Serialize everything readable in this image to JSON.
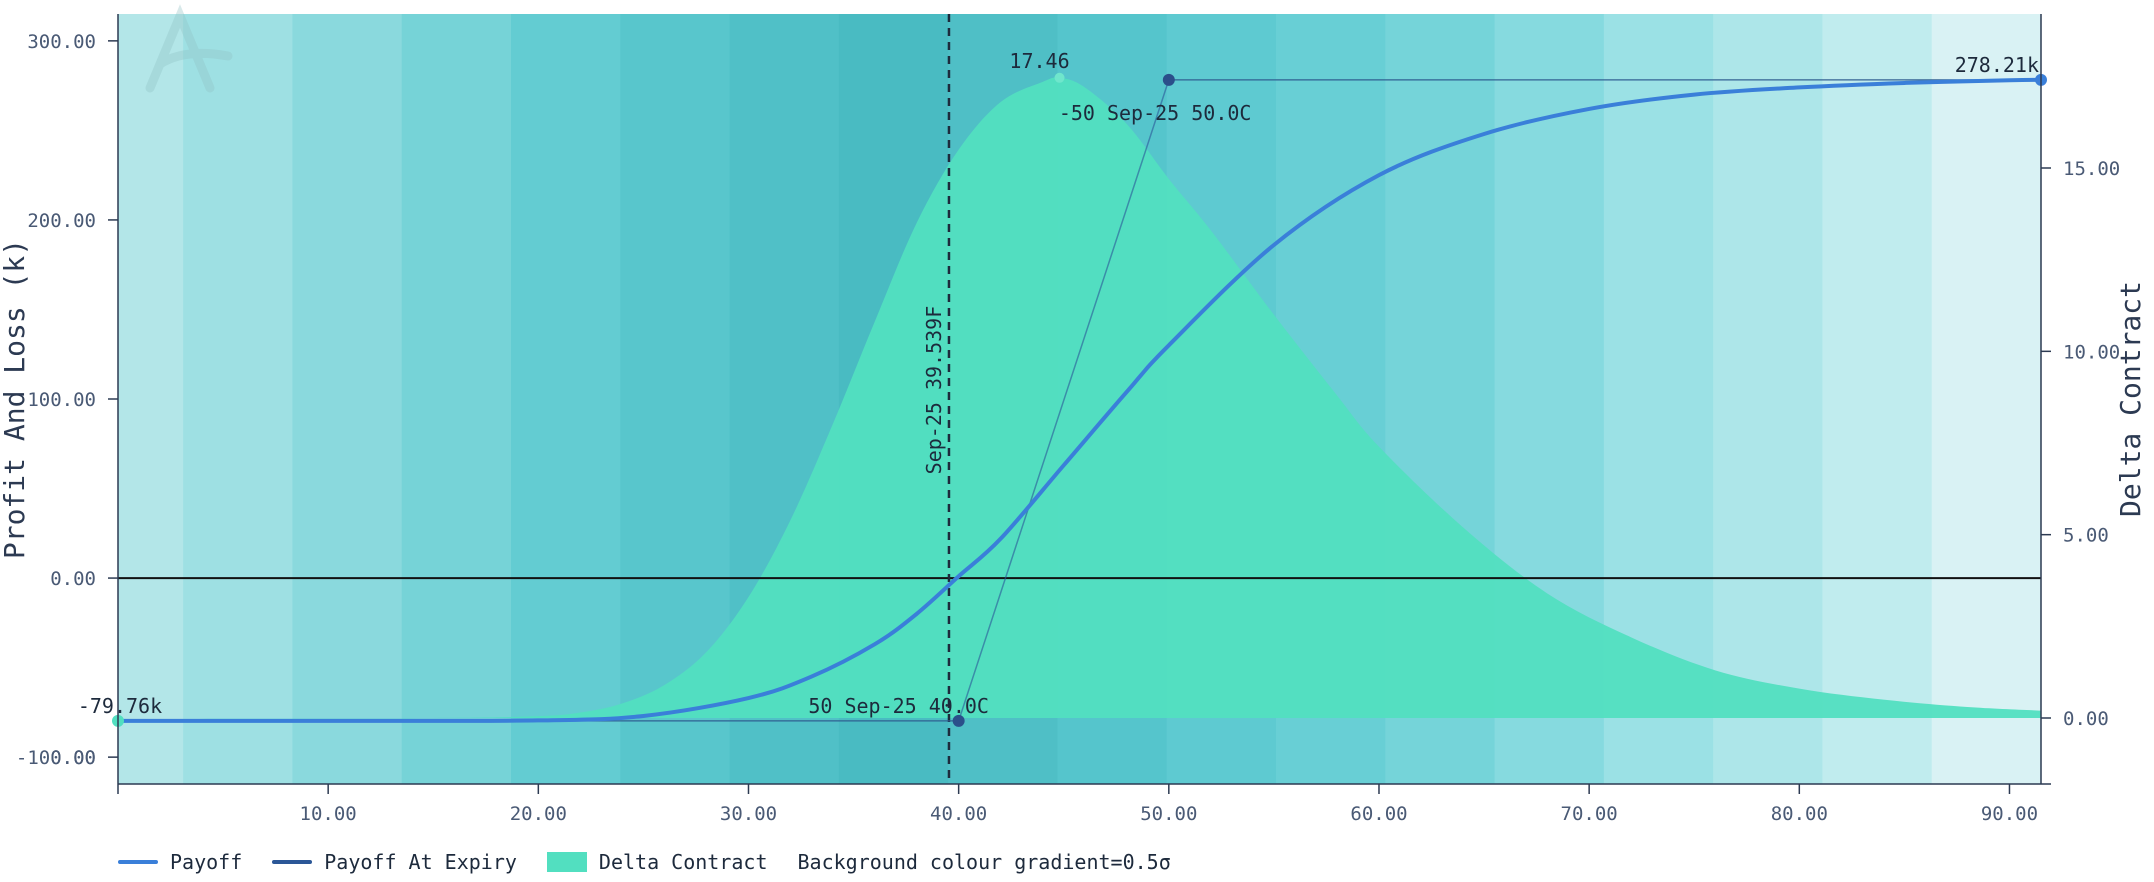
{
  "chart_data": {
    "type": "area",
    "left_axis": {
      "label": "Profit And Loss (k)",
      "range": [
        -115,
        315
      ],
      "ticks": [
        -100,
        0,
        100,
        200,
        300
      ],
      "tick_labels": [
        "-100.00",
        "0.00",
        "100.00",
        "200.00",
        "300.00"
      ]
    },
    "right_axis": {
      "label": "Delta Contract",
      "range": [
        -1.8,
        19.2
      ],
      "ticks": [
        0,
        5,
        10,
        15
      ],
      "tick_labels": [
        "0.00",
        "5.00",
        "10.00",
        "15.00"
      ]
    },
    "x_axis": {
      "label": "",
      "range": [
        0,
        91.5
      ],
      "ticks": [
        10,
        20,
        30,
        40,
        50,
        60,
        70,
        80,
        90
      ],
      "tick_labels": [
        "10.00",
        "20.00",
        "30.00",
        "40.00",
        "50.00",
        "60.00",
        "70.00",
        "80.00",
        "90.00"
      ]
    },
    "overlap_label": "0.00",
    "series": [
      {
        "name": "Payoff",
        "color": "#3a7fd9",
        "x": [
          0,
          10,
          20,
          25,
          30,
          33,
          36,
          38,
          40,
          42,
          45,
          48,
          50,
          55,
          60,
          65,
          70,
          75,
          80,
          85,
          90,
          91.5
        ],
        "y": [
          -79.76,
          -79.76,
          -79.5,
          -77,
          -67,
          -55,
          -37,
          -20,
          1,
          22,
          63,
          104,
          130,
          186,
          225,
          248,
          262,
          270,
          274,
          276.5,
          278,
          278.21
        ]
      },
      {
        "name": "Payoff At Expiry",
        "color": "#2b5797",
        "x": [
          0,
          40,
          50,
          91.5
        ],
        "y": [
          -79.76,
          -79.76,
          278.21,
          278.21
        ]
      },
      {
        "name": "Delta Contract",
        "color": "#52dfc0",
        "x": [
          0,
          15,
          20,
          22,
          24,
          26,
          28,
          30,
          32,
          34,
          36,
          38,
          40,
          42,
          44,
          44.8,
          46,
          48,
          50,
          52,
          55,
          58,
          60,
          64,
          68,
          72,
          76,
          80,
          84,
          88,
          91.5
        ],
        "y": [
          0,
          0,
          0.05,
          0.15,
          0.4,
          0.9,
          1.8,
          3.3,
          5.4,
          8.0,
          10.8,
          13.5,
          15.5,
          16.8,
          17.35,
          17.46,
          17.2,
          16.2,
          14.7,
          13.3,
          11.0,
          8.8,
          7.4,
          5.2,
          3.4,
          2.2,
          1.3,
          0.8,
          0.5,
          0.3,
          0.2
        ]
      }
    ],
    "background_bands": [
      {
        "x0": 0,
        "x1": 3.1,
        "color": "#b3e6e8"
      },
      {
        "x0": 3.1,
        "x1": 8.3,
        "color": "#9ee0e3"
      },
      {
        "x0": 8.3,
        "x1": 13.5,
        "color": "#8ad9dd"
      },
      {
        "x0": 13.5,
        "x1": 18.7,
        "color": "#76d3d7"
      },
      {
        "x0": 18.7,
        "x1": 23.9,
        "color": "#63ccd2"
      },
      {
        "x0": 23.9,
        "x1": 29.1,
        "color": "#58c6cc"
      },
      {
        "x0": 29.1,
        "x1": 34.3,
        "color": "#50c0c7"
      },
      {
        "x0": 34.3,
        "x1": 39.5,
        "color": "#49bbc2"
      },
      {
        "x0": 39.5,
        "x1": 44.7,
        "color": "#4fbfc6"
      },
      {
        "x0": 44.7,
        "x1": 49.9,
        "color": "#55c5cc"
      },
      {
        "x0": 49.9,
        "x1": 55.1,
        "color": "#5ecad1"
      },
      {
        "x0": 55.1,
        "x1": 60.3,
        "color": "#68cfd5"
      },
      {
        "x0": 60.3,
        "x1": 65.5,
        "color": "#75d4d9"
      },
      {
        "x0": 65.5,
        "x1": 70.7,
        "color": "#86dadf"
      },
      {
        "x0": 70.7,
        "x1": 75.9,
        "color": "#9be1e5"
      },
      {
        "x0": 75.9,
        "x1": 81.1,
        "color": "#ade6e9"
      },
      {
        "x0": 81.1,
        "x1": 86.3,
        "color": "#c0ecee"
      },
      {
        "x0": 86.3,
        "x1": 91.5,
        "color": "#d9f2f4"
      }
    ],
    "forward_line": {
      "x": 39.539,
      "label": "Sep-25 39.539F"
    },
    "legs": [
      {
        "label": "50 Sep-25 40.0C",
        "x": 40,
        "y": -79.76
      },
      {
        "label": "-50 Sep-25 50.0C",
        "x": 50,
        "y": 278.21
      }
    ],
    "annotations": {
      "start_value": "-79.76k",
      "end_value": "278.21k",
      "delta_peak": "17.46",
      "delta_peak_x": 44.8,
      "delta_peak_value": 17.46
    },
    "legend": {
      "placement": "bottom-left",
      "items": [
        "Payoff",
        "Payoff At Expiry",
        "Delta Contract"
      ],
      "gradient_note": "Background colour gradient=0.5σ"
    },
    "grid": false
  }
}
